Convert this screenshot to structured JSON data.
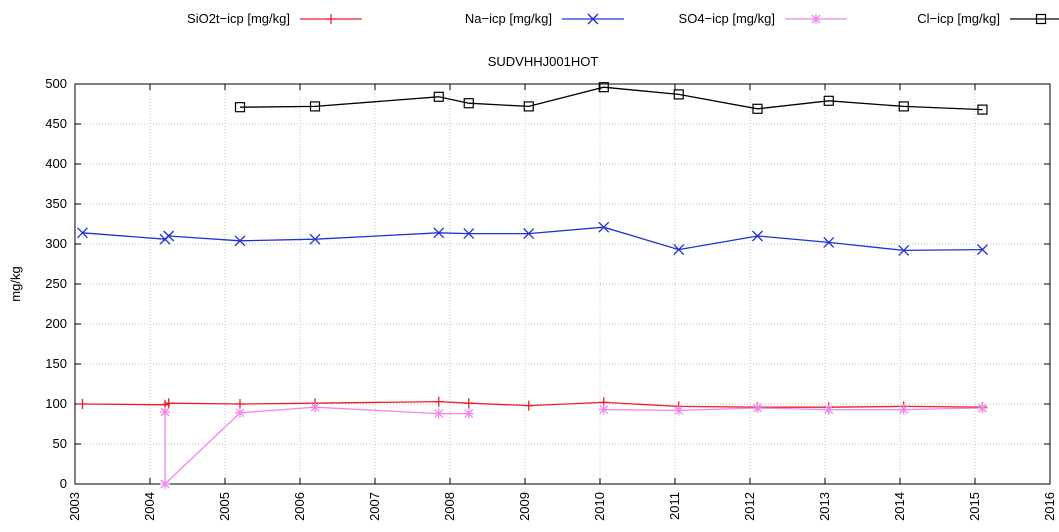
{
  "chart_data": {
    "type": "line",
    "title": "SUDVHHJ001HOT",
    "xlabel": "",
    "ylabel": "mg/kg",
    "xlim": [
      2003,
      2016
    ],
    "ylim": [
      0,
      500
    ],
    "xticks": [
      "2003",
      "2004",
      "2005",
      "2006",
      "2007",
      "2008",
      "2009",
      "2010",
      "2011",
      "2012",
      "2013",
      "2014",
      "2015",
      "2016"
    ],
    "yticks": [
      "0",
      "50",
      "100",
      "150",
      "200",
      "250",
      "300",
      "350",
      "400",
      "450",
      "500"
    ],
    "grid": true,
    "legend": "top",
    "series": [
      {
        "name": "SiO2t−icp [mg/kg]",
        "color": "#e8202a",
        "marker": "plus",
        "points": [
          [
            2003.1,
            100
          ],
          [
            2004.2,
            99
          ],
          [
            2004.25,
            101
          ],
          [
            2005.2,
            100
          ],
          [
            2006.2,
            101
          ],
          [
            2007.85,
            103
          ],
          [
            2008.25,
            101
          ],
          [
            2009.05,
            98
          ],
          [
            2010.05,
            102
          ],
          [
            2011.05,
            97
          ],
          [
            2012.1,
            96
          ],
          [
            2013.05,
            96
          ],
          [
            2014.05,
            97
          ],
          [
            2015.1,
            96
          ]
        ]
      },
      {
        "name": "Na−icp [mg/kg]",
        "color": "#2030d8",
        "marker": "x",
        "points": [
          [
            2003.1,
            314
          ],
          [
            2004.2,
            306
          ],
          [
            2004.25,
            310
          ],
          [
            2005.2,
            304
          ],
          [
            2006.2,
            306
          ],
          [
            2007.85,
            314
          ],
          [
            2008.25,
            313
          ],
          [
            2009.05,
            313
          ],
          [
            2010.05,
            321
          ],
          [
            2011.05,
            293
          ],
          [
            2012.1,
            310
          ],
          [
            2013.05,
            302
          ],
          [
            2014.05,
            292
          ],
          [
            2015.1,
            293
          ]
        ]
      },
      {
        "name": "SO4−icp [mg/kg]",
        "color": "#ee88ee",
        "marker": "star",
        "segments": [
          [
            [
              2004.2,
              90
            ],
            [
              2004.2,
              0
            ],
            [
              2005.2,
              89
            ],
            [
              2006.2,
              96
            ],
            [
              2007.85,
              88
            ],
            [
              2008.25,
              88
            ]
          ],
          [
            [
              2010.05,
              93
            ],
            [
              2011.05,
              92
            ],
            [
              2012.1,
              95
            ],
            [
              2013.05,
              93
            ],
            [
              2014.05,
              93
            ],
            [
              2015.1,
              95
            ]
          ]
        ]
      },
      {
        "name": "Cl−icp [mg/kg]",
        "color": "#000000",
        "marker": "square",
        "points": [
          [
            2005.2,
            471
          ],
          [
            2006.2,
            472
          ],
          [
            2007.85,
            484
          ],
          [
            2008.25,
            476
          ],
          [
            2009.05,
            472
          ],
          [
            2010.05,
            496
          ],
          [
            2011.05,
            487
          ],
          [
            2012.1,
            469
          ],
          [
            2013.05,
            479
          ],
          [
            2014.05,
            472
          ],
          [
            2015.1,
            468
          ]
        ]
      }
    ]
  }
}
